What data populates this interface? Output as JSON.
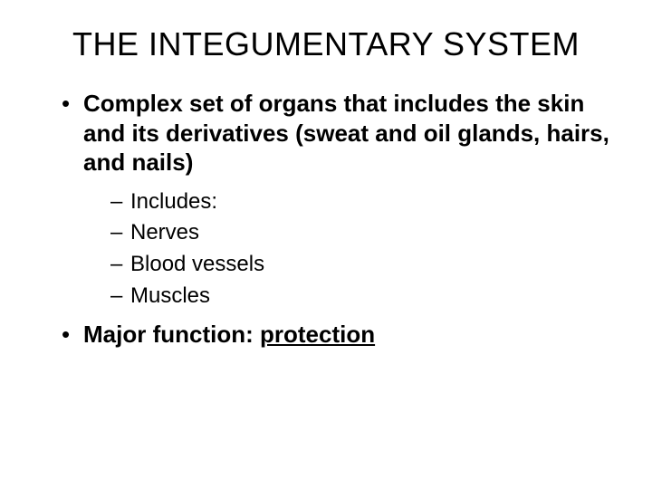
{
  "slide": {
    "title": "THE INTEGUMENTARY SYSTEM",
    "bullets": [
      {
        "text": "Complex set of organs that includes the skin and its derivatives (sweat and oil glands, hairs, and nails)",
        "bold": true,
        "sub": [
          {
            "text": "Includes:"
          },
          {
            "text": "Nerves"
          },
          {
            "text": "Blood vessels"
          },
          {
            "text": "Muscles"
          }
        ]
      },
      {
        "prefix": "Major function: ",
        "underlined": "protection",
        "bold": true
      }
    ]
  },
  "style": {
    "background_color": "#ffffff",
    "text_color": "#000000",
    "title_fontsize": 36,
    "bullet_fontsize": 26,
    "subbullet_fontsize": 24,
    "font_family": "Arial"
  }
}
